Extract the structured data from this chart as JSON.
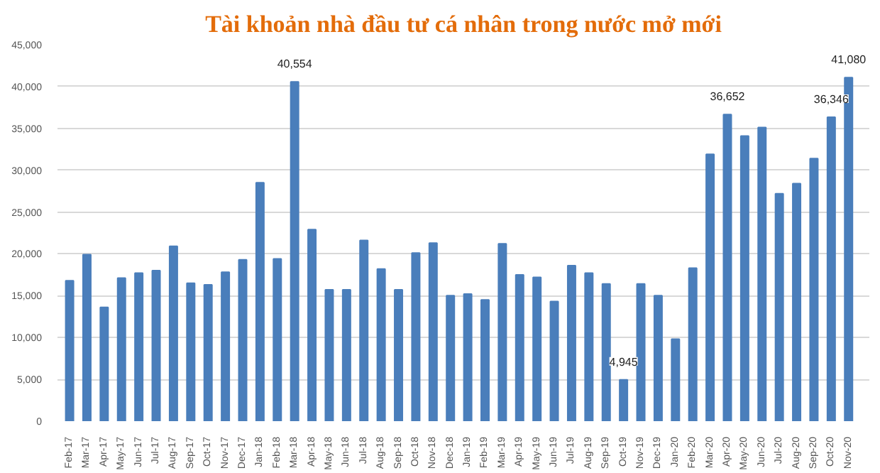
{
  "chart_data": {
    "type": "bar",
    "title": "Tài khoản nhà đầu tư cá nhân trong nước mở mới",
    "categories": [
      "Feb-17",
      "Mar-17",
      "Apr-17",
      "May-17",
      "Jun-17",
      "Jul-17",
      "Aug-17",
      "Sep-17",
      "Oct-17",
      "Nov-17",
      "Dec-17",
      "Jan-18",
      "Feb-18",
      "Mar-18",
      "Apr-18",
      "May-18",
      "Jun-18",
      "Jul-18",
      "Aug-18",
      "Sep-18",
      "Oct-18",
      "Nov-18",
      "Dec-18",
      "Jan-19",
      "Feb-19",
      "Mar-19",
      "Apr-19",
      "May-19",
      "Jun-19",
      "Jul-19",
      "Aug-19",
      "Sep-19",
      "Oct-19",
      "Nov-19",
      "Dec-19",
      "Jan-20",
      "Feb-20",
      "Mar-20",
      "Apr-20",
      "May-20",
      "Jun-20",
      "Jul-20",
      "Aug-20",
      "Sep-20",
      "Oct-20",
      "Nov-20"
    ],
    "values": [
      16800,
      19900,
      13600,
      17100,
      17700,
      18000,
      20900,
      16500,
      16300,
      17800,
      19300,
      28500,
      19400,
      40554,
      22900,
      15700,
      15700,
      21600,
      18200,
      15700,
      20100,
      21300,
      15000,
      15200,
      14500,
      21200,
      17500,
      17200,
      14300,
      18600,
      17700,
      16400,
      4945,
      16400,
      15000,
      9800,
      18300,
      31900,
      36652,
      34100,
      35100,
      27200,
      28400,
      31400,
      36346,
      41080
    ],
    "value_labels": [
      null,
      null,
      null,
      null,
      null,
      null,
      null,
      null,
      null,
      null,
      null,
      null,
      null,
      "40,554",
      null,
      null,
      null,
      null,
      null,
      null,
      null,
      null,
      null,
      null,
      null,
      null,
      null,
      null,
      null,
      null,
      null,
      null,
      "4,945",
      null,
      null,
      null,
      null,
      null,
      "36,652",
      null,
      null,
      null,
      null,
      null,
      "36,346",
      "41,080"
    ],
    "color": "#4a7ebb",
    "ylim": [
      0,
      45000
    ],
    "yticks": [
      {
        "value": 0,
        "label": "0"
      },
      {
        "value": 5000,
        "label": "5,000"
      },
      {
        "value": 10000,
        "label": "10,000"
      },
      {
        "value": 15000,
        "label": "15,000"
      },
      {
        "value": 20000,
        "label": "20,000"
      },
      {
        "value": 25000,
        "label": "25,000"
      },
      {
        "value": 30000,
        "label": "30,000"
      },
      {
        "value": 35000,
        "label": "35,000"
      },
      {
        "value": 40000,
        "label": "40,000"
      },
      {
        "value": 45000,
        "label": "45,000"
      }
    ],
    "grid": "y"
  }
}
